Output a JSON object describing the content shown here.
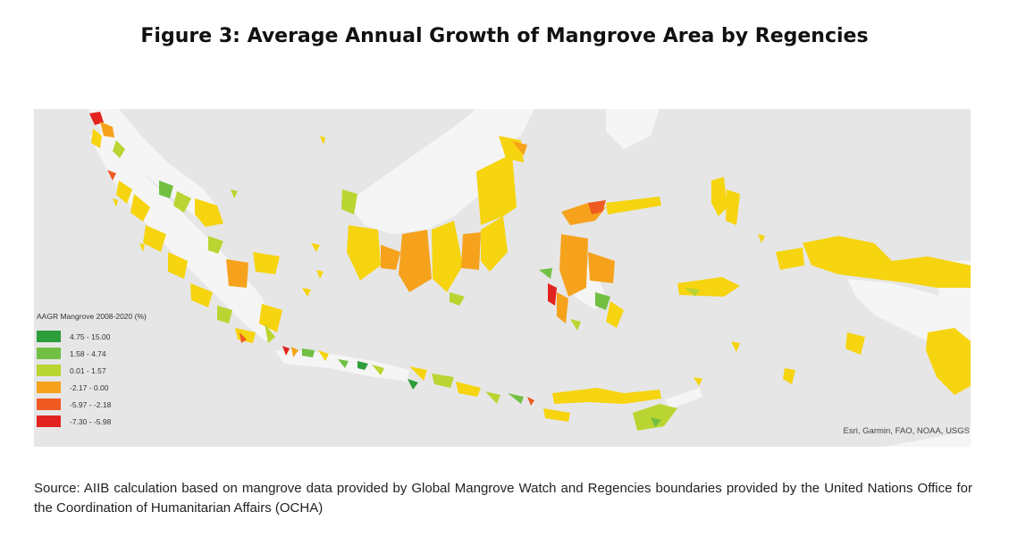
{
  "title": "Figure 3: Average Annual Growth of Mangrove Area by Regencies",
  "legend": {
    "title": "AAGR Mangrove 2008-2020 (%)",
    "items": [
      {
        "label": "4.75 - 15.00",
        "color": "#2e9e3a"
      },
      {
        "label": "1.58 - 4.74",
        "color": "#72c043"
      },
      {
        "label": "0.01 - 1.57",
        "color": "#b9d531"
      },
      {
        "label": "-2.17 - 0.00",
        "color": "#f6a21c"
      },
      {
        "label": "-5.97 - -2.18",
        "color": "#ee5a22"
      },
      {
        "label": "-7.30 - -5.98",
        "color": "#e3231f"
      }
    ]
  },
  "map_colors": {
    "sea": "#e6e6e6",
    "land": "#f5f5f5",
    "default_regency": "#f6d40f"
  },
  "credit": "Esri, Garmin, FAO, NOAA, USGS",
  "source_text": "Source: AIIB calculation based on mangrove data provided by Global Mangrove Watch and Regencies boundaries provided by the United Nations Office for the Coordination of Humanitarian Affairs (OCHA)"
}
